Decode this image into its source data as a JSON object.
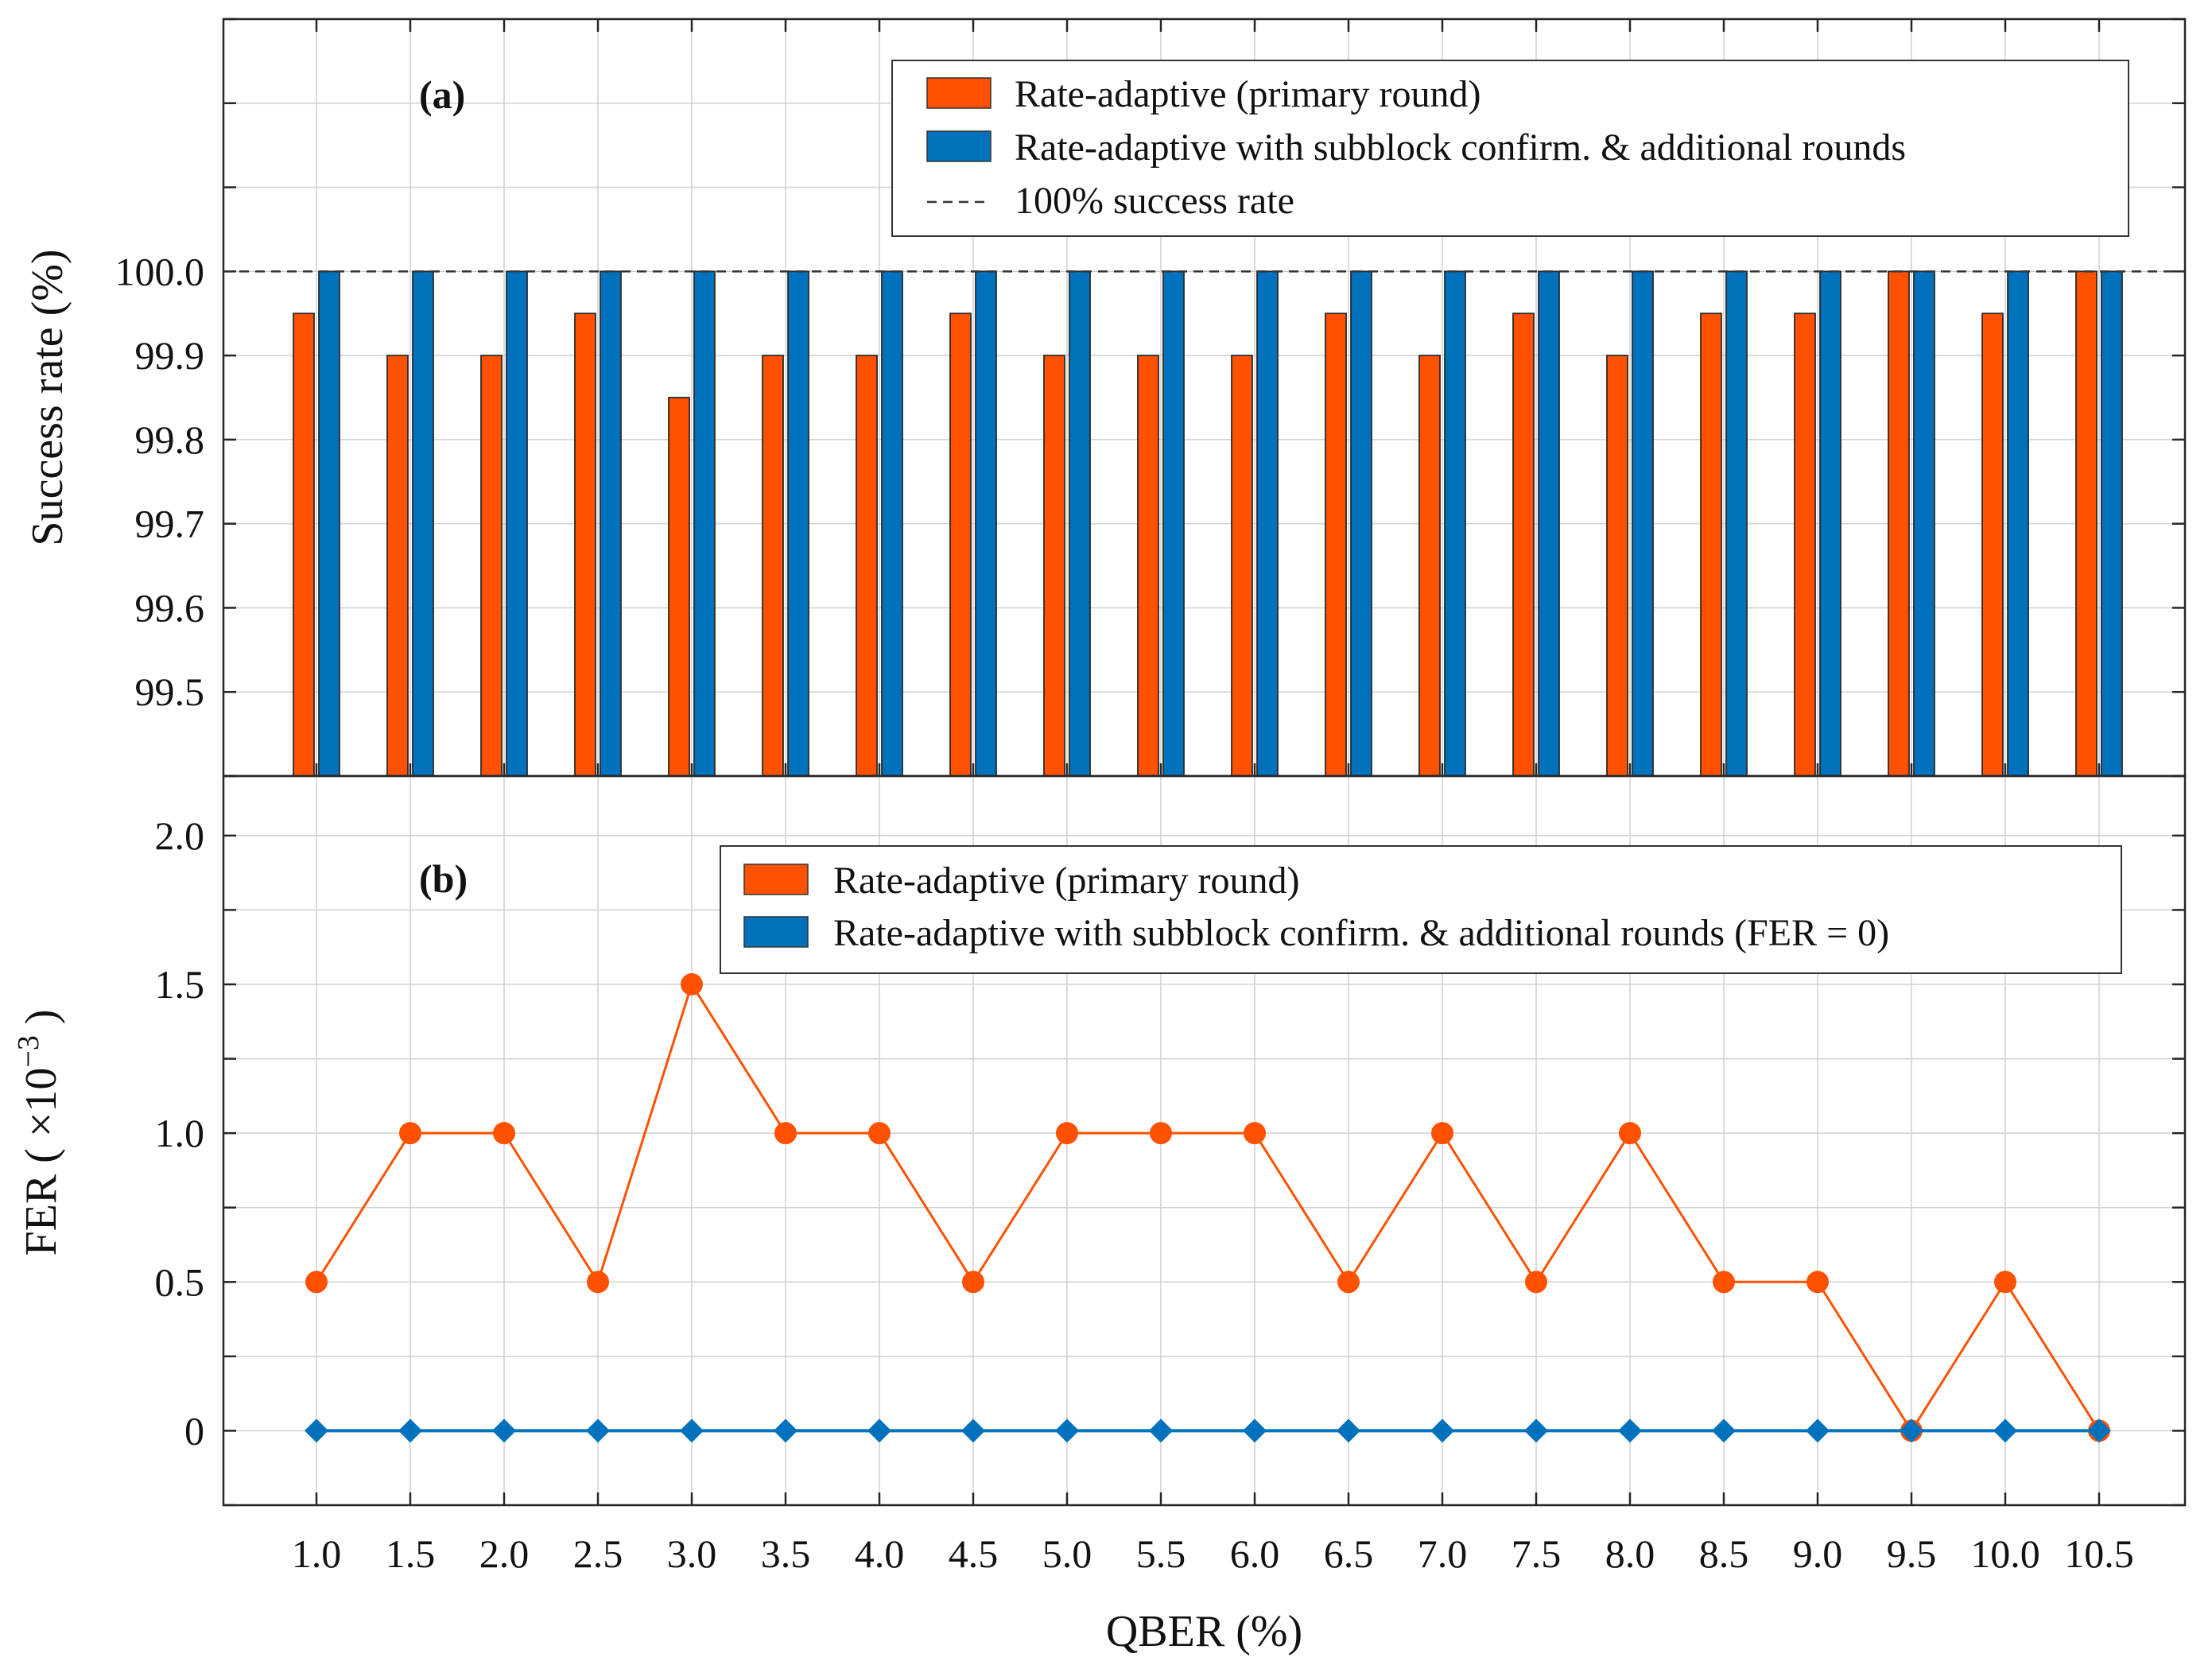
{
  "chart_data": [
    {
      "type": "bar",
      "panel_label": "(a)",
      "ylabel": "Success rate (%)",
      "xlabel": "",
      "categories": [
        "1.0",
        "1.5",
        "2.0",
        "2.5",
        "3.0",
        "3.5",
        "4.0",
        "4.5",
        "5.0",
        "5.5",
        "6.0",
        "6.5",
        "7.0",
        "7.5",
        "8.0",
        "8.5",
        "9.0",
        "9.5",
        "10.0",
        "10.5"
      ],
      "ylim": [
        99.4,
        100.3
      ],
      "yticks": [
        99.5,
        99.6,
        99.7,
        99.8,
        99.9,
        100.0
      ],
      "ytick_labels": [
        "99.5",
        "99.6",
        "99.7",
        "99.8",
        "99.9",
        "100.0"
      ],
      "grid": true,
      "legend_position": "top-right",
      "series": [
        {
          "name": "Rate-adaptive (primary round)",
          "color": "#FF5100",
          "values": [
            99.95,
            99.9,
            99.9,
            99.95,
            99.85,
            99.9,
            99.9,
            99.95,
            99.9,
            99.9,
            99.9,
            99.95,
            99.9,
            99.95,
            99.9,
            99.95,
            99.95,
            100.0,
            99.95,
            100.0
          ]
        },
        {
          "name": "Rate-adaptive with subblock confirm. & additional rounds",
          "color": "#0072BD",
          "values": [
            100.0,
            100.0,
            100.0,
            100.0,
            100.0,
            100.0,
            100.0,
            100.0,
            100.0,
            100.0,
            100.0,
            100.0,
            100.0,
            100.0,
            100.0,
            100.0,
            100.0,
            100.0,
            100.0,
            100.0
          ]
        }
      ],
      "reference_line": {
        "name": "100% success rate",
        "value": 100.0,
        "style": "dashed",
        "color": "#333333"
      }
    },
    {
      "type": "line",
      "panel_label": "(b)",
      "ylabel": "FER",
      "ylabel_unit": "( ×10",
      "ylabel_unit_exp": "−3",
      "ylabel_unit_close": ")",
      "xlabel": "QBER (%)",
      "x": [
        "1.0",
        "1.5",
        "2.0",
        "2.5",
        "3.0",
        "3.5",
        "4.0",
        "4.5",
        "5.0",
        "5.5",
        "6.0",
        "6.5",
        "7.0",
        "7.5",
        "8.0",
        "8.5",
        "9.0",
        "9.5",
        "10.0",
        "10.5"
      ],
      "ylim": [
        -0.25,
        2.2
      ],
      "yticks": [
        0,
        0.5,
        1.0,
        1.5,
        2.0
      ],
      "ytick_labels": [
        "0",
        "0.5",
        "1.0",
        "1.5",
        "2.0"
      ],
      "grid": true,
      "legend_position": "top-right",
      "series": [
        {
          "name": "Rate-adaptive (primary round)",
          "color": "#FF5100",
          "marker": "circle",
          "values": [
            0.5,
            1.0,
            1.0,
            0.5,
            1.5,
            1.0,
            1.0,
            0.5,
            1.0,
            1.0,
            1.0,
            0.5,
            1.0,
            0.5,
            1.0,
            0.5,
            0.5,
            0,
            0.5,
            0
          ]
        },
        {
          "name": "Rate-adaptive with subblock confirm. & additional rounds (FER = 0)",
          "color": "#0072BD",
          "marker": "diamond",
          "values": [
            0,
            0,
            0,
            0,
            0,
            0,
            0,
            0,
            0,
            0,
            0,
            0,
            0,
            0,
            0,
            0,
            0,
            0,
            0,
            0
          ]
        }
      ]
    }
  ]
}
